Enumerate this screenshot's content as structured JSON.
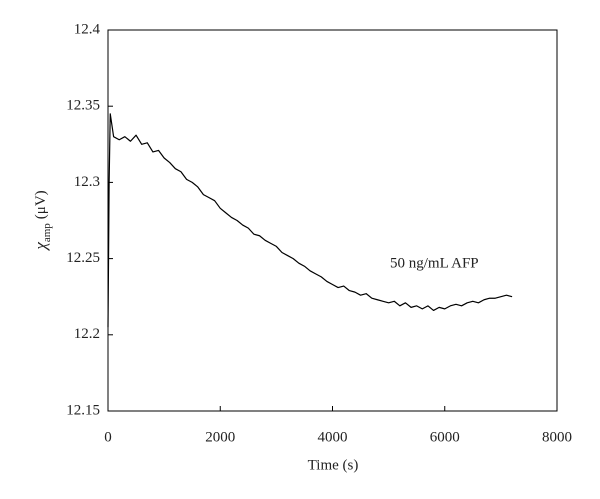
{
  "chart_data": {
    "type": "line",
    "x_label": "Time (s)",
    "y_label": {
      "symbol": "χ",
      "subscript": "amp",
      "unit": "(μV)"
    },
    "annotation": "50 ng/mL AFP",
    "xlim": [
      0,
      8000
    ],
    "xticks": [
      0,
      2000,
      4000,
      6000,
      8000
    ],
    "ylim": [
      12.15,
      12.4
    ],
    "yticks": [
      12.15,
      12.2,
      12.25,
      12.3,
      12.35,
      12.4
    ],
    "x": [
      0,
      20,
      40,
      60,
      100,
      200,
      300,
      400,
      500,
      600,
      700,
      800,
      900,
      1000,
      1100,
      1200,
      1300,
      1400,
      1500,
      1600,
      1700,
      1800,
      1900,
      2000,
      2100,
      2200,
      2300,
      2400,
      2500,
      2600,
      2700,
      2800,
      2900,
      3000,
      3100,
      3200,
      3300,
      3400,
      3500,
      3600,
      3700,
      3800,
      3900,
      4000,
      4100,
      4200,
      4300,
      4400,
      4500,
      4600,
      4700,
      4800,
      4900,
      5000,
      5100,
      5200,
      5300,
      5400,
      5500,
      5600,
      5700,
      5800,
      5900,
      6000,
      6100,
      6200,
      6300,
      6400,
      6500,
      6600,
      6700,
      6800,
      6900,
      7000,
      7100,
      7200
    ],
    "series": [
      {
        "color": "#000000",
        "values": [
          12.205,
          12.3,
          12.345,
          12.34,
          12.33,
          12.328,
          12.33,
          12.327,
          12.331,
          12.325,
          12.326,
          12.32,
          12.321,
          12.316,
          12.313,
          12.309,
          12.307,
          12.302,
          12.3,
          12.297,
          12.292,
          12.29,
          12.288,
          12.283,
          12.28,
          12.277,
          12.275,
          12.272,
          12.27,
          12.266,
          12.265,
          12.262,
          12.26,
          12.258,
          12.254,
          12.252,
          12.25,
          12.247,
          12.245,
          12.242,
          12.24,
          12.238,
          12.235,
          12.233,
          12.231,
          12.232,
          12.229,
          12.228,
          12.226,
          12.227,
          12.224,
          12.223,
          12.222,
          12.221,
          12.222,
          12.219,
          12.221,
          12.218,
          12.219,
          12.217,
          12.219,
          12.216,
          12.218,
          12.217,
          12.219,
          12.22,
          12.219,
          12.221,
          12.222,
          12.221,
          12.223,
          12.224,
          12.224,
          12.225,
          12.226,
          12.225
        ]
      }
    ]
  }
}
